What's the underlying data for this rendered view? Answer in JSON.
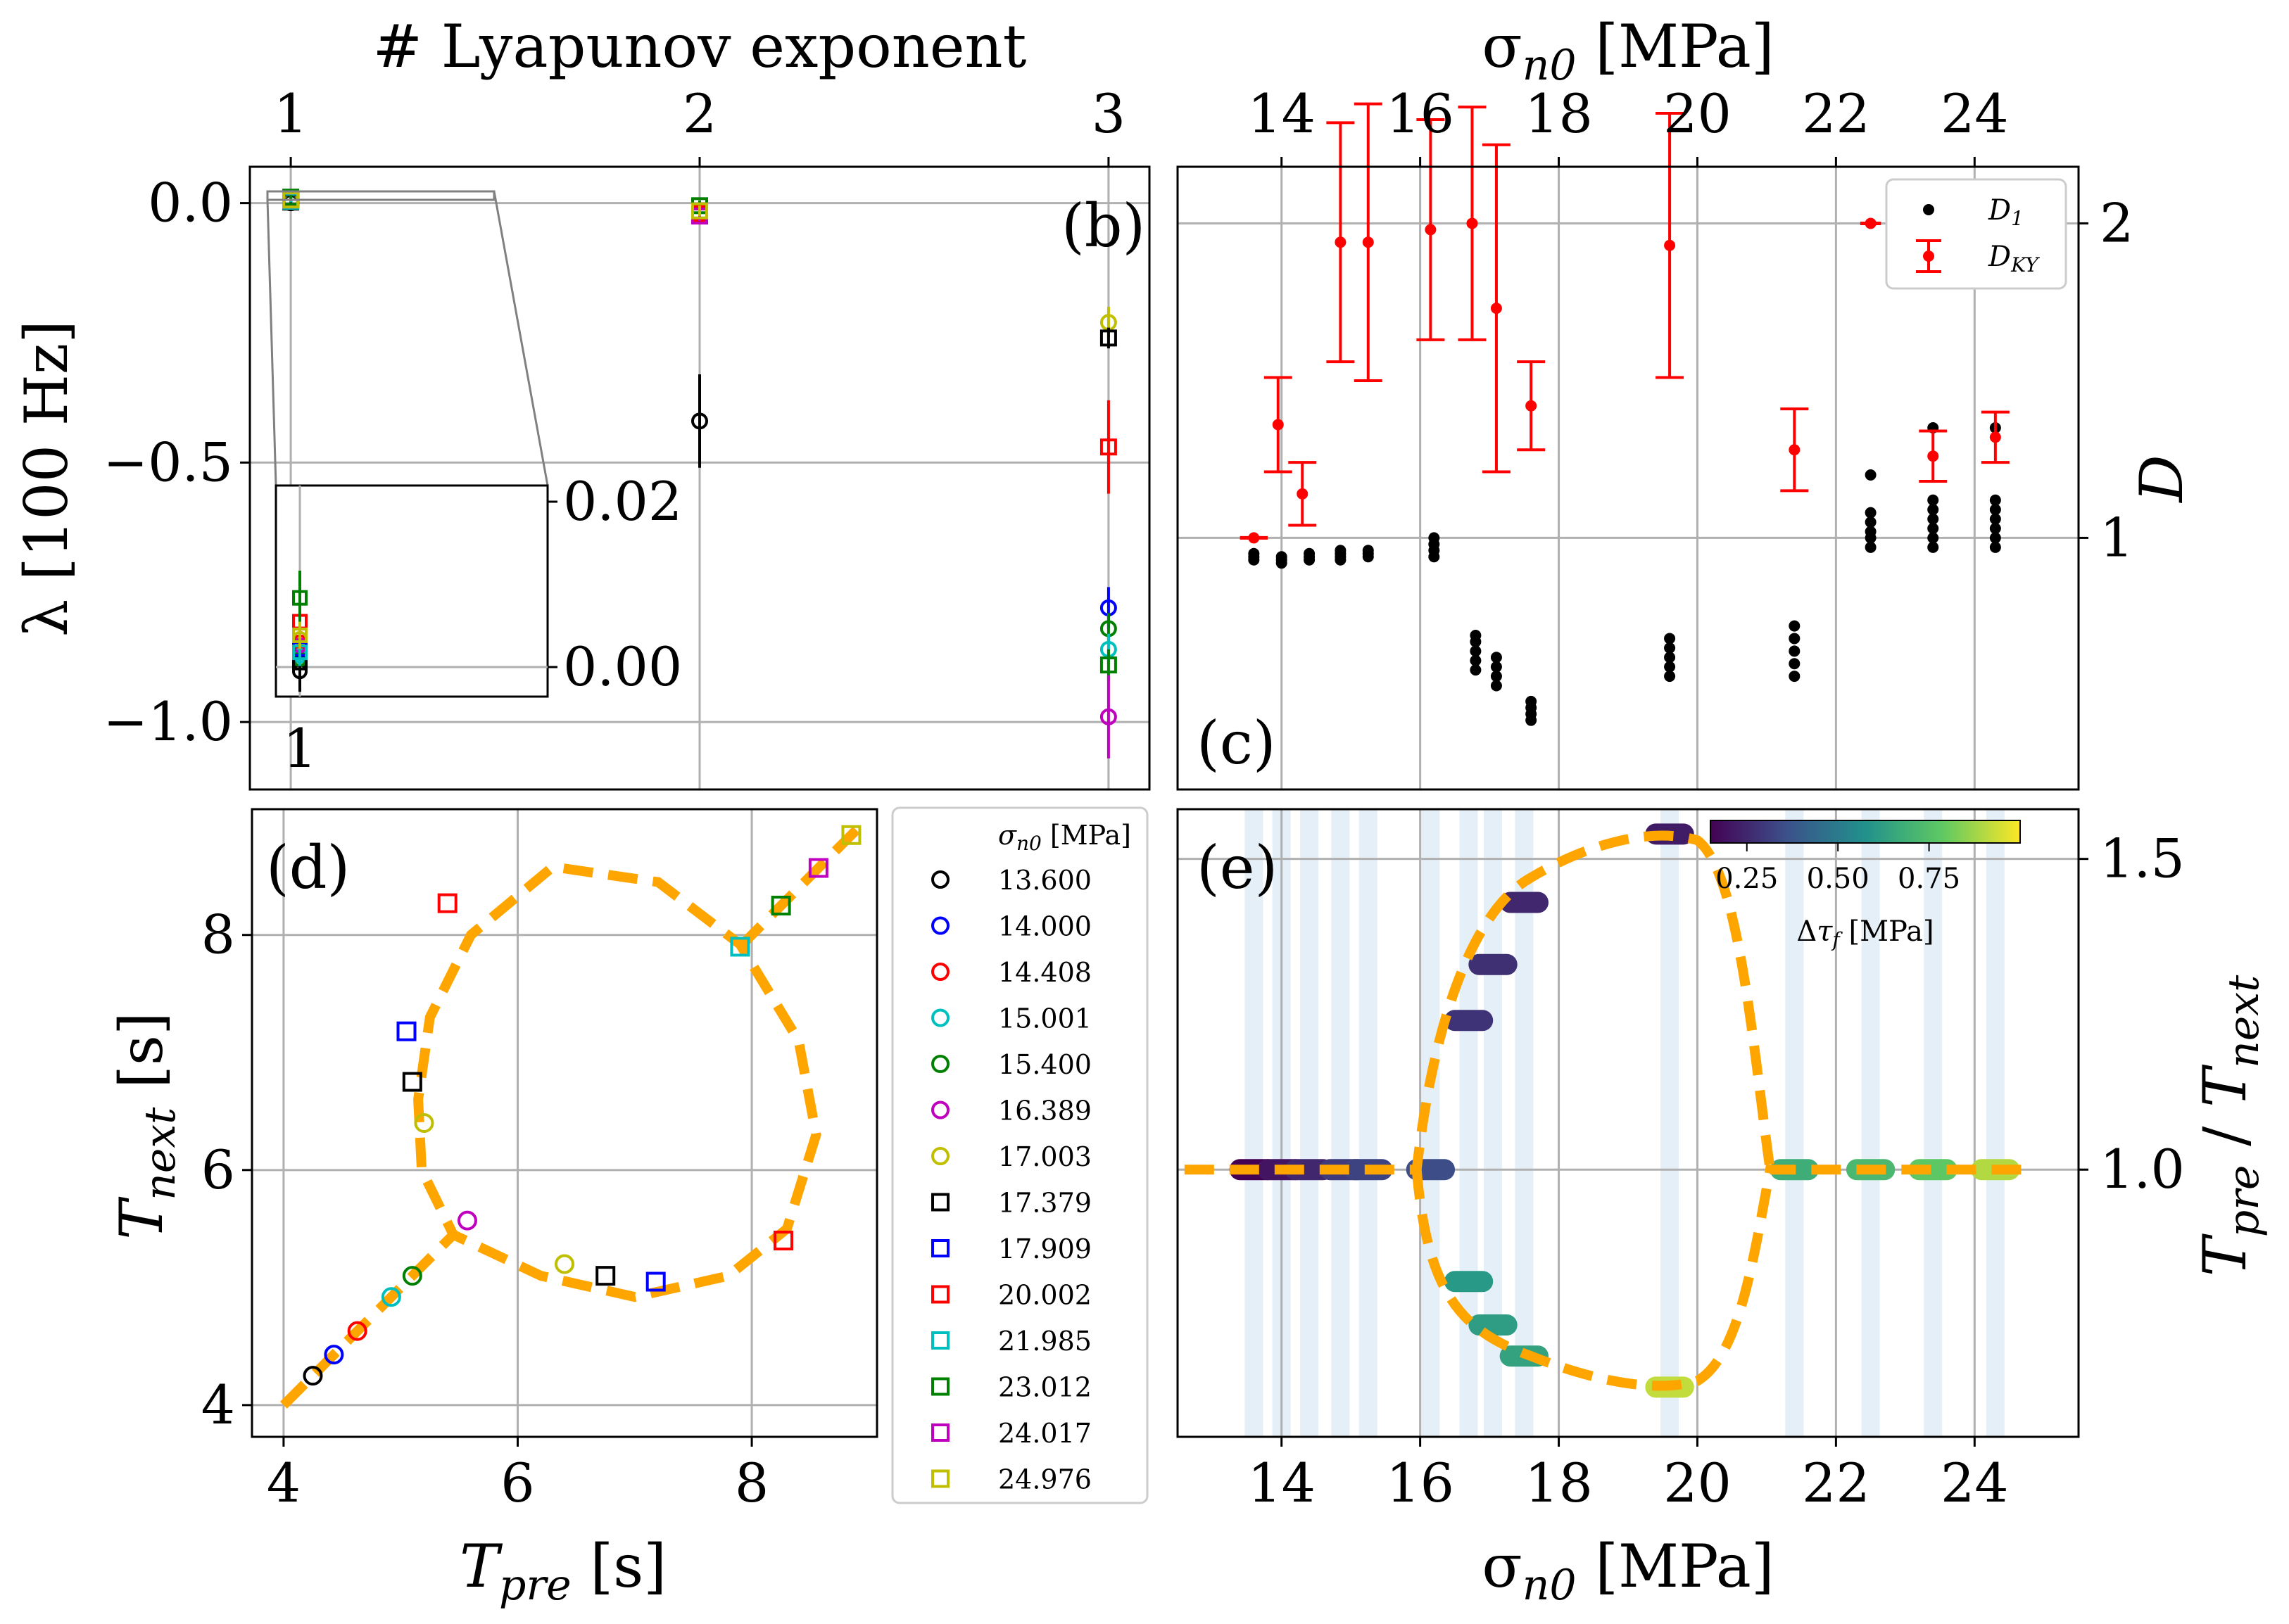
{
  "chart_data": [
    {
      "id": "b",
      "type": "scatter",
      "panel_label": "(b)",
      "xlabel": "# Lyapunov exponent",
      "ylabel": "λ [100 Hz]",
      "xticks": [
        "1",
        "2",
        "3"
      ],
      "yticks": [
        "0.0",
        "−0.5",
        "−1.0"
      ],
      "xlim": [
        0.9,
        3.1
      ],
      "ylim": [
        -1.13,
        0.07
      ],
      "grid": true,
      "inset": {
        "yticks": [
          "0.02",
          "0.00"
        ],
        "xticks": [
          "1"
        ],
        "ylim": [
          -0.003,
          0.028
        ]
      },
      "points": [
        {
          "exp": 1,
          "value": 0.0007,
          "err": 0.003,
          "color": "#000000",
          "marker": "circle"
        },
        {
          "exp": 1,
          "value": 0.0035,
          "err": 0.002,
          "color": "#0000ff",
          "marker": "circle"
        },
        {
          "exp": 1,
          "value": 0.005,
          "err": 0.002,
          "color": "#ff0000",
          "marker": "circle"
        },
        {
          "exp": 1,
          "value": 0.003,
          "err": 0.002,
          "color": "#00bfbf",
          "marker": "circle"
        },
        {
          "exp": 1,
          "value": 0.0025,
          "err": 0.002,
          "color": "#008000",
          "marker": "circle"
        },
        {
          "exp": 1,
          "value": 0.0045,
          "err": 0.002,
          "color": "#bf00bf",
          "marker": "circle"
        },
        {
          "exp": 1,
          "value": 0.0055,
          "err": 0.002,
          "color": "#bfbf00",
          "marker": "circle"
        },
        {
          "exp": 1,
          "value": 0.002,
          "err": 0.002,
          "color": "#000000",
          "marker": "square"
        },
        {
          "exp": 1,
          "value": 0.004,
          "err": 0.002,
          "color": "#0000ff",
          "marker": "square"
        },
        {
          "exp": 1,
          "value": 0.008,
          "err": 0.002,
          "color": "#ff0000",
          "marker": "square"
        },
        {
          "exp": 1,
          "value": 0.0035,
          "err": 0.002,
          "color": "#00bfbf",
          "marker": "square"
        },
        {
          "exp": 1,
          "value": 0.0115,
          "err": 0.004,
          "color": "#008000",
          "marker": "square"
        },
        {
          "exp": 1,
          "value": 0.006,
          "err": 0.002,
          "color": "#bf00bf",
          "marker": "square"
        },
        {
          "exp": 1,
          "value": 0.006,
          "err": 0.002,
          "color": "#bfbf00",
          "marker": "square"
        },
        {
          "exp": 2,
          "value": -0.42,
          "err": 0.09,
          "color": "#000000",
          "marker": "circle"
        },
        {
          "exp": 2,
          "value": -0.005,
          "err": 0.01,
          "color": "#008000",
          "marker": "square"
        },
        {
          "exp": 2,
          "value": -0.02,
          "err": 0.01,
          "color": "#ff0000",
          "marker": "square"
        },
        {
          "exp": 2,
          "value": -0.025,
          "err": 0.01,
          "color": "#bf00bf",
          "marker": "square"
        },
        {
          "exp": 2,
          "value": -0.015,
          "err": 0.01,
          "color": "#bfbf00",
          "marker": "square"
        },
        {
          "exp": 3,
          "value": -0.23,
          "err": 0.03,
          "color": "#bfbf00",
          "marker": "circle"
        },
        {
          "exp": 3,
          "value": -0.26,
          "err": 0.02,
          "color": "#000000",
          "marker": "square"
        },
        {
          "exp": 3,
          "value": -0.47,
          "err": 0.09,
          "color": "#ff0000",
          "marker": "square"
        },
        {
          "exp": 3,
          "value": -0.78,
          "err": 0.04,
          "color": "#0000ff",
          "marker": "circle"
        },
        {
          "exp": 3,
          "value": -0.82,
          "err": 0.03,
          "color": "#008000",
          "marker": "circle"
        },
        {
          "exp": 3,
          "value": -0.86,
          "err": 0.03,
          "color": "#00bfbf",
          "marker": "circle"
        },
        {
          "exp": 3,
          "value": -0.89,
          "err": 0.03,
          "color": "#008000",
          "marker": "square"
        },
        {
          "exp": 3,
          "value": -0.99,
          "err": 0.08,
          "color": "#bf00bf",
          "marker": "circle"
        }
      ]
    },
    {
      "id": "c",
      "type": "scatter",
      "panel_label": "(c)",
      "xlabel": "σn0 [MPa]",
      "ylabel": "D",
      "xticks": [
        "14",
        "16",
        "18",
        "20",
        "22",
        "24"
      ],
      "yticks": [
        "1",
        "2"
      ],
      "xlim": [
        12.5,
        25.5
      ],
      "ylim": [
        0.2,
        2.18
      ],
      "grid": true,
      "legend": {
        "position": "top-right",
        "entries": [
          "D1",
          "DKY"
        ]
      },
      "D1": [
        {
          "x": 13.6,
          "values": [
            0.93,
            0.94,
            0.95
          ]
        },
        {
          "x": 14.0,
          "values": [
            0.92,
            0.93,
            0.94
          ]
        },
        {
          "x": 14.4,
          "values": [
            0.93,
            0.94,
            0.95
          ]
        },
        {
          "x": 14.85,
          "values": [
            0.93,
            0.94,
            0.95,
            0.96
          ]
        },
        {
          "x": 15.25,
          "values": [
            0.94,
            0.95,
            0.96
          ]
        },
        {
          "x": 16.2,
          "values": [
            0.94,
            0.96,
            0.98,
            1.0
          ]
        },
        {
          "x": 16.8,
          "values": [
            0.58,
            0.61,
            0.64,
            0.67,
            0.69
          ]
        },
        {
          "x": 17.1,
          "values": [
            0.53,
            0.56,
            0.59,
            0.62
          ]
        },
        {
          "x": 17.6,
          "values": [
            0.42,
            0.44,
            0.46,
            0.48
          ]
        },
        {
          "x": 19.6,
          "values": [
            0.56,
            0.59,
            0.62,
            0.65,
            0.68
          ]
        },
        {
          "x": 21.4,
          "values": [
            0.56,
            0.6,
            0.64,
            0.68,
            0.72
          ]
        },
        {
          "x": 22.5,
          "values": [
            0.97,
            1.0,
            1.02,
            1.05,
            1.08,
            1.2
          ]
        },
        {
          "x": 23.4,
          "values": [
            0.97,
            1.0,
            1.03,
            1.06,
            1.09,
            1.12,
            1.35
          ]
        },
        {
          "x": 24.3,
          "values": [
            0.97,
            1.0,
            1.03,
            1.06,
            1.09,
            1.12,
            1.35
          ]
        }
      ],
      "DKY": [
        {
          "x": 13.6,
          "value": 1.0,
          "err": 0.0,
          "xerr": 0.2
        },
        {
          "x": 13.95,
          "value": 1.36,
          "err": 0.15
        },
        {
          "x": 14.3,
          "value": 1.14,
          "err": 0.1
        },
        {
          "x": 14.85,
          "value": 1.94,
          "err": 0.38
        },
        {
          "x": 15.25,
          "value": 1.94,
          "err": 0.44
        },
        {
          "x": 16.15,
          "value": 1.98,
          "err": 0.35
        },
        {
          "x": 16.75,
          "value": 2.0,
          "err": 0.37
        },
        {
          "x": 17.1,
          "value": 1.73,
          "err": 0.52
        },
        {
          "x": 17.6,
          "value": 1.42,
          "err": 0.14
        },
        {
          "x": 19.6,
          "value": 1.93,
          "err": 0.42
        },
        {
          "x": 21.4,
          "value": 1.28,
          "err": 0.13
        },
        {
          "x": 22.5,
          "value": 2.0,
          "err": 0.0,
          "xerr": 0.15
        },
        {
          "x": 23.4,
          "value": 1.26,
          "err": 0.08
        },
        {
          "x": 24.3,
          "value": 1.32,
          "err": 0.08
        }
      ]
    },
    {
      "id": "d",
      "type": "scatter",
      "panel_label": "(d)",
      "xlabel": "Tpre [s]",
      "ylabel": "Tnext [s]",
      "xticks": [
        "4",
        "6",
        "8"
      ],
      "yticks": [
        "4",
        "6",
        "8"
      ],
      "xlim": [
        3.73,
        9.07
      ],
      "ylim": [
        3.73,
        9.07
      ],
      "grid": true,
      "legend": {
        "title": "σn0 [MPa]",
        "position": "outside-right",
        "entries": [
          {
            "label": "13.600",
            "color": "#000000",
            "marker": "circle"
          },
          {
            "label": "14.000",
            "color": "#0000ff",
            "marker": "circle"
          },
          {
            "label": "14.408",
            "color": "#ff0000",
            "marker": "circle"
          },
          {
            "label": "15.001",
            "color": "#00bfbf",
            "marker": "circle"
          },
          {
            "label": "15.400",
            "color": "#008000",
            "marker": "circle"
          },
          {
            "label": "16.389",
            "color": "#bf00bf",
            "marker": "circle"
          },
          {
            "label": "17.003",
            "color": "#bfbf00",
            "marker": "circle"
          },
          {
            "label": "17.379",
            "color": "#000000",
            "marker": "square"
          },
          {
            "label": "17.909",
            "color": "#0000ff",
            "marker": "square"
          },
          {
            "label": "20.002",
            "color": "#ff0000",
            "marker": "square"
          },
          {
            "label": "21.985",
            "color": "#00bfbf",
            "marker": "square"
          },
          {
            "label": "23.012",
            "color": "#008000",
            "marker": "square"
          },
          {
            "label": "24.017",
            "color": "#bf00bf",
            "marker": "square"
          },
          {
            "label": "24.976",
            "color": "#bfbf00",
            "marker": "square"
          }
        ]
      },
      "points": [
        {
          "x": 4.25,
          "y": 4.25,
          "color": "#000000",
          "marker": "circle"
        },
        {
          "x": 4.43,
          "y": 4.43,
          "color": "#0000ff",
          "marker": "circle"
        },
        {
          "x": 4.63,
          "y": 4.63,
          "color": "#ff0000",
          "marker": "circle"
        },
        {
          "x": 4.92,
          "y": 4.92,
          "color": "#00bfbf",
          "marker": "circle"
        },
        {
          "x": 5.1,
          "y": 5.1,
          "color": "#008000",
          "marker": "circle"
        },
        {
          "x": 5.57,
          "y": 5.57,
          "color": "#bf00bf",
          "marker": "circle"
        },
        {
          "x": 5.2,
          "y": 6.4,
          "color": "#bfbf00",
          "marker": "circle"
        },
        {
          "x": 6.4,
          "y": 5.2,
          "color": "#bfbf00",
          "marker": "circle"
        },
        {
          "x": 5.1,
          "y": 6.75,
          "color": "#000000",
          "marker": "square"
        },
        {
          "x": 6.75,
          "y": 5.1,
          "color": "#000000",
          "marker": "square"
        },
        {
          "x": 5.05,
          "y": 7.18,
          "color": "#0000ff",
          "marker": "square"
        },
        {
          "x": 7.18,
          "y": 5.05,
          "color": "#0000ff",
          "marker": "square"
        },
        {
          "x": 5.4,
          "y": 8.27,
          "color": "#ff0000",
          "marker": "square"
        },
        {
          "x": 8.27,
          "y": 5.4,
          "color": "#ff0000",
          "marker": "square"
        },
        {
          "x": 7.9,
          "y": 7.9,
          "color": "#00bfbf",
          "marker": "square"
        },
        {
          "x": 8.25,
          "y": 8.25,
          "color": "#008000",
          "marker": "square"
        },
        {
          "x": 8.57,
          "y": 8.57,
          "color": "#bf00bf",
          "marker": "square"
        },
        {
          "x": 8.85,
          "y": 8.85,
          "color": "#bfbf00",
          "marker": "square"
        }
      ]
    },
    {
      "id": "e",
      "type": "scatter",
      "panel_label": "(e)",
      "xlabel": "σn0 [MPa]",
      "ylabel": "Tpre / Tnext",
      "xticks": [
        "14",
        "16",
        "18",
        "20",
        "22",
        "24"
      ],
      "yticks": [
        "1.0",
        "1.5"
      ],
      "xlim": [
        12.5,
        25.5
      ],
      "ylim": [
        0.57,
        1.58
      ],
      "grid": true,
      "colorbar": {
        "label": "Δτf [MPa]",
        "ticks": [
          "0.25",
          "0.50",
          "0.75"
        ],
        "range": [
          0.15,
          1.0
        ]
      },
      "shaded_x": [
        13.6,
        14.0,
        14.4,
        14.85,
        15.25,
        16.15,
        16.7,
        17.05,
        17.5,
        19.6,
        21.4,
        22.5,
        23.4,
        24.3
      ],
      "clusters": [
        {
          "x0": 13.4,
          "x1": 13.8,
          "y": 1.0,
          "c": 0.15
        },
        {
          "x0": 13.8,
          "x1": 14.2,
          "y": 1.0,
          "c": 0.2
        },
        {
          "x0": 14.2,
          "x1": 14.6,
          "y": 1.0,
          "c": 0.25
        },
        {
          "x0": 14.7,
          "x1": 15.1,
          "y": 1.0,
          "c": 0.3
        },
        {
          "x0": 15.05,
          "x1": 15.45,
          "y": 1.0,
          "c": 0.32
        },
        {
          "x0": 15.95,
          "x1": 16.35,
          "y": 1.0,
          "c": 0.35
        },
        {
          "x0": 16.5,
          "x1": 16.9,
          "y": 1.24,
          "c": 0.28
        },
        {
          "x0": 16.5,
          "x1": 16.9,
          "y": 0.82,
          "c": 0.6
        },
        {
          "x0": 16.85,
          "x1": 17.25,
          "y": 1.33,
          "c": 0.27
        },
        {
          "x0": 16.85,
          "x1": 17.25,
          "y": 0.75,
          "c": 0.62
        },
        {
          "x0": 17.3,
          "x1": 17.7,
          "y": 1.43,
          "c": 0.25
        },
        {
          "x0": 17.3,
          "x1": 17.7,
          "y": 0.7,
          "c": 0.64
        },
        {
          "x0": 19.4,
          "x1": 19.8,
          "y": 1.54,
          "c": 0.22
        },
        {
          "x0": 19.4,
          "x1": 19.8,
          "y": 0.65,
          "c": 0.92
        },
        {
          "x0": 21.2,
          "x1": 21.6,
          "y": 1.0,
          "c": 0.68
        },
        {
          "x0": 22.3,
          "x1": 22.7,
          "y": 1.0,
          "c": 0.72
        },
        {
          "x0": 23.2,
          "x1": 23.6,
          "y": 1.0,
          "c": 0.78
        },
        {
          "x0": 24.1,
          "x1": 24.5,
          "y": 1.0,
          "c": 0.9
        }
      ]
    }
  ]
}
